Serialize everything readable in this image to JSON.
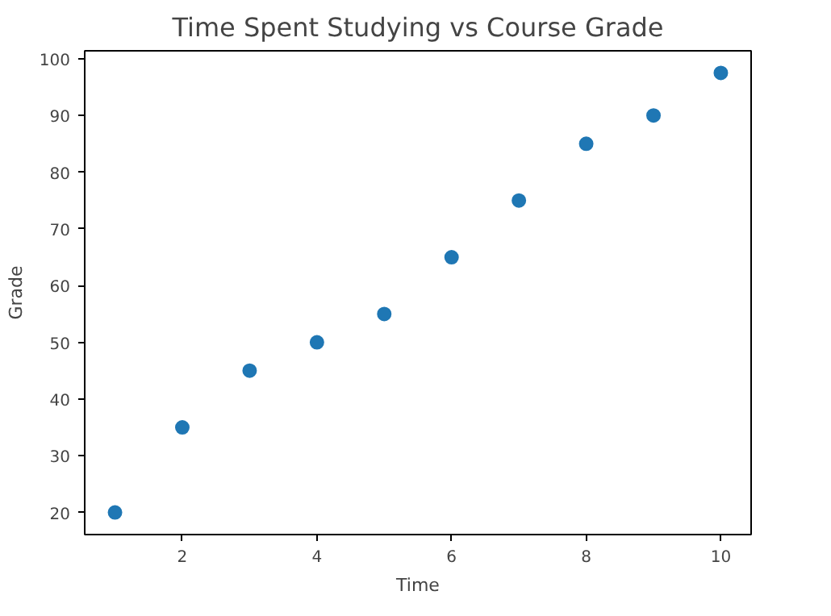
{
  "chart_data": {
    "type": "scatter",
    "title": "Time Spent Studying vs Course Grade",
    "xlabel": "Time",
    "ylabel": "Grade",
    "x": [
      1,
      2,
      3,
      4,
      5,
      6,
      7,
      8,
      9,
      10
    ],
    "series": [
      {
        "color": "#1f77b4",
        "values": [
          20,
          35,
          45,
          50,
          55,
          65,
          75,
          85,
          90,
          97.5
        ]
      }
    ],
    "xlim": [
      0.55,
      10.45
    ],
    "xticks": [
      2,
      4,
      6,
      8,
      10
    ],
    "ylim": [
      16.1,
      101.4
    ],
    "yticks": [
      20,
      30,
      40,
      50,
      60,
      70,
      80,
      90,
      100
    ],
    "marker": "circle"
  }
}
